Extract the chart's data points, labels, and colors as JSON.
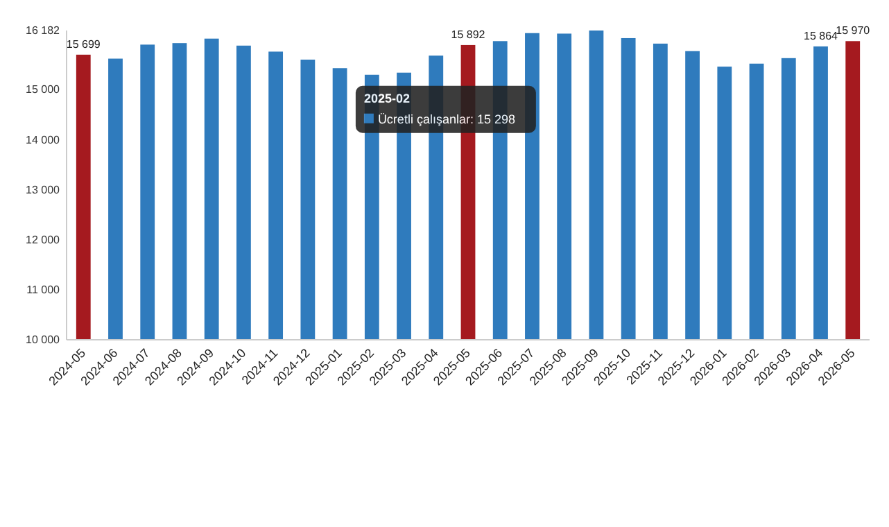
{
  "chart_data": {
    "type": "bar",
    "categories": [
      "2024-05",
      "2024-06",
      "2024-07",
      "2024-08",
      "2024-09",
      "2024-10",
      "2024-11",
      "2024-12",
      "2025-01",
      "2025-02",
      "2025-03",
      "2025-04",
      "2025-05",
      "2025-06",
      "2025-07",
      "2025-08",
      "2025-09",
      "2025-10",
      "2025-11",
      "2025-12",
      "2026-01",
      "2026-02",
      "2026-03",
      "2026-04",
      "2026-05"
    ],
    "series": [
      {
        "values": [
          15699,
          15620,
          15900,
          15930,
          16020,
          15880,
          15760,
          15600,
          15430,
          15298,
          15340,
          15680,
          15892,
          15970,
          16130,
          16120,
          16182,
          16030,
          15920,
          15770,
          15460,
          15520,
          15630,
          15864,
          15970
        ],
        "colors": [
          "#a51a1f",
          "#2f7bbd",
          "#2f7bbd",
          "#2f7bbd",
          "#2f7bbd",
          "#2f7bbd",
          "#2f7bbd",
          "#2f7bbd",
          "#2f7bbd",
          "#2f7bbd",
          "#2f7bbd",
          "#2f7bbd",
          "#a51a1f",
          "#2f7bbd",
          "#2f7bbd",
          "#2f7bbd",
          "#2f7bbd",
          "#2f7bbd",
          "#2f7bbd",
          "#2f7bbd",
          "#2f7bbd",
          "#2f7bbd",
          "#2f7bbd",
          "#2f7bbd",
          "#a51a1f"
        ],
        "value_labels": [
          "15 699",
          null,
          null,
          null,
          null,
          null,
          null,
          null,
          null,
          null,
          null,
          null,
          "15 892",
          null,
          null,
          null,
          null,
          null,
          null,
          null,
          null,
          null,
          null,
          "15 864",
          "15 970"
        ]
      }
    ],
    "ylim": [
      10000,
      16182
    ],
    "yticks": [
      {
        "value": 10000,
        "label": "10 000"
      },
      {
        "value": 11000,
        "label": "11 000"
      },
      {
        "value": 12000,
        "label": "12 000"
      },
      {
        "value": 13000,
        "label": "13 000"
      },
      {
        "value": 14000,
        "label": "14 000"
      },
      {
        "value": 15000,
        "label": "15 000"
      },
      {
        "value": 16182,
        "label": "16 182"
      }
    ],
    "annotations": [
      "2025-02",
      "Ücretli çalışanlar: 15 298"
    ],
    "grid": false
  }
}
